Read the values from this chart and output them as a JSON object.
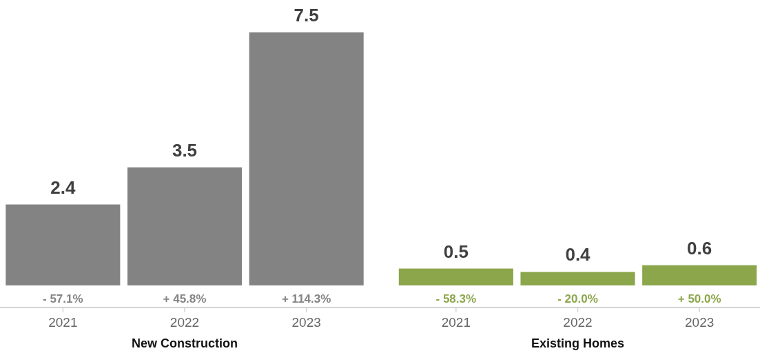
{
  "chart_data": [
    {
      "type": "bar",
      "xlabel": "New Construction",
      "categories": [
        "2021",
        "2022",
        "2023"
      ],
      "values": [
        2.4,
        3.5,
        7.5
      ],
      "color": "#838383",
      "data_labels": true,
      "annotations": [
        {
          "text": "- 57.1%",
          "x": "2021",
          "y": 0
        },
        {
          "text": "+ 45.8%",
          "x": "2022",
          "y": 0
        },
        {
          "text": "+ 114.3%",
          "x": "2023",
          "y": 0
        }
      ]
    },
    {
      "type": "bar",
      "xlabel": "Existing Homes",
      "categories": [
        "2021",
        "2022",
        "2023"
      ],
      "values": [
        0.5,
        0.4,
        0.6
      ],
      "color": "#8ba64b",
      "data_labels": true,
      "annotations": [
        {
          "text": "- 58.3%",
          "x": "2021",
          "y": 0
        },
        {
          "text": "- 20.0%",
          "x": "2022",
          "y": 0
        },
        {
          "text": "+ 50.0%",
          "x": "2023",
          "y": 0
        }
      ]
    }
  ]
}
